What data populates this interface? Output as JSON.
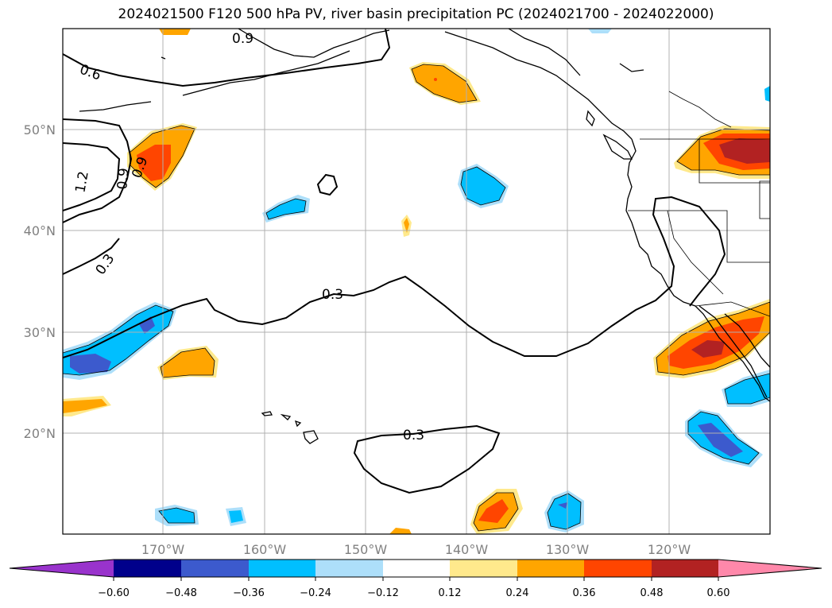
{
  "title": "2024021500 F120 500 hPa PV, river basin precipitation PC (2024021700 - 2024022000)",
  "latitude_labels": [
    "50°N",
    "40°N",
    "30°N",
    "20°N"
  ],
  "longitude_labels": [
    "170°W",
    "160°W",
    "150°W",
    "140°W",
    "130°W",
    "120°W"
  ],
  "contour_labels": [
    "0.9",
    "0.6",
    "1.2",
    "0.9",
    "0.9",
    "0.3",
    "0.3",
    "0.3"
  ],
  "colorbar": {
    "ticks": [
      "−0.60",
      "−0.48",
      "−0.36",
      "−0.24",
      "−0.12",
      "0.12",
      "0.24",
      "0.36",
      "0.48",
      "0.60"
    ],
    "colors": [
      "#9933cc",
      "#00008b",
      "#3c5acd",
      "#00bfff",
      "#addffa",
      "#ffffff",
      "#ffe98c",
      "#ffa500",
      "#ff4500",
      "#b22222",
      "#ff88aa"
    ]
  }
}
